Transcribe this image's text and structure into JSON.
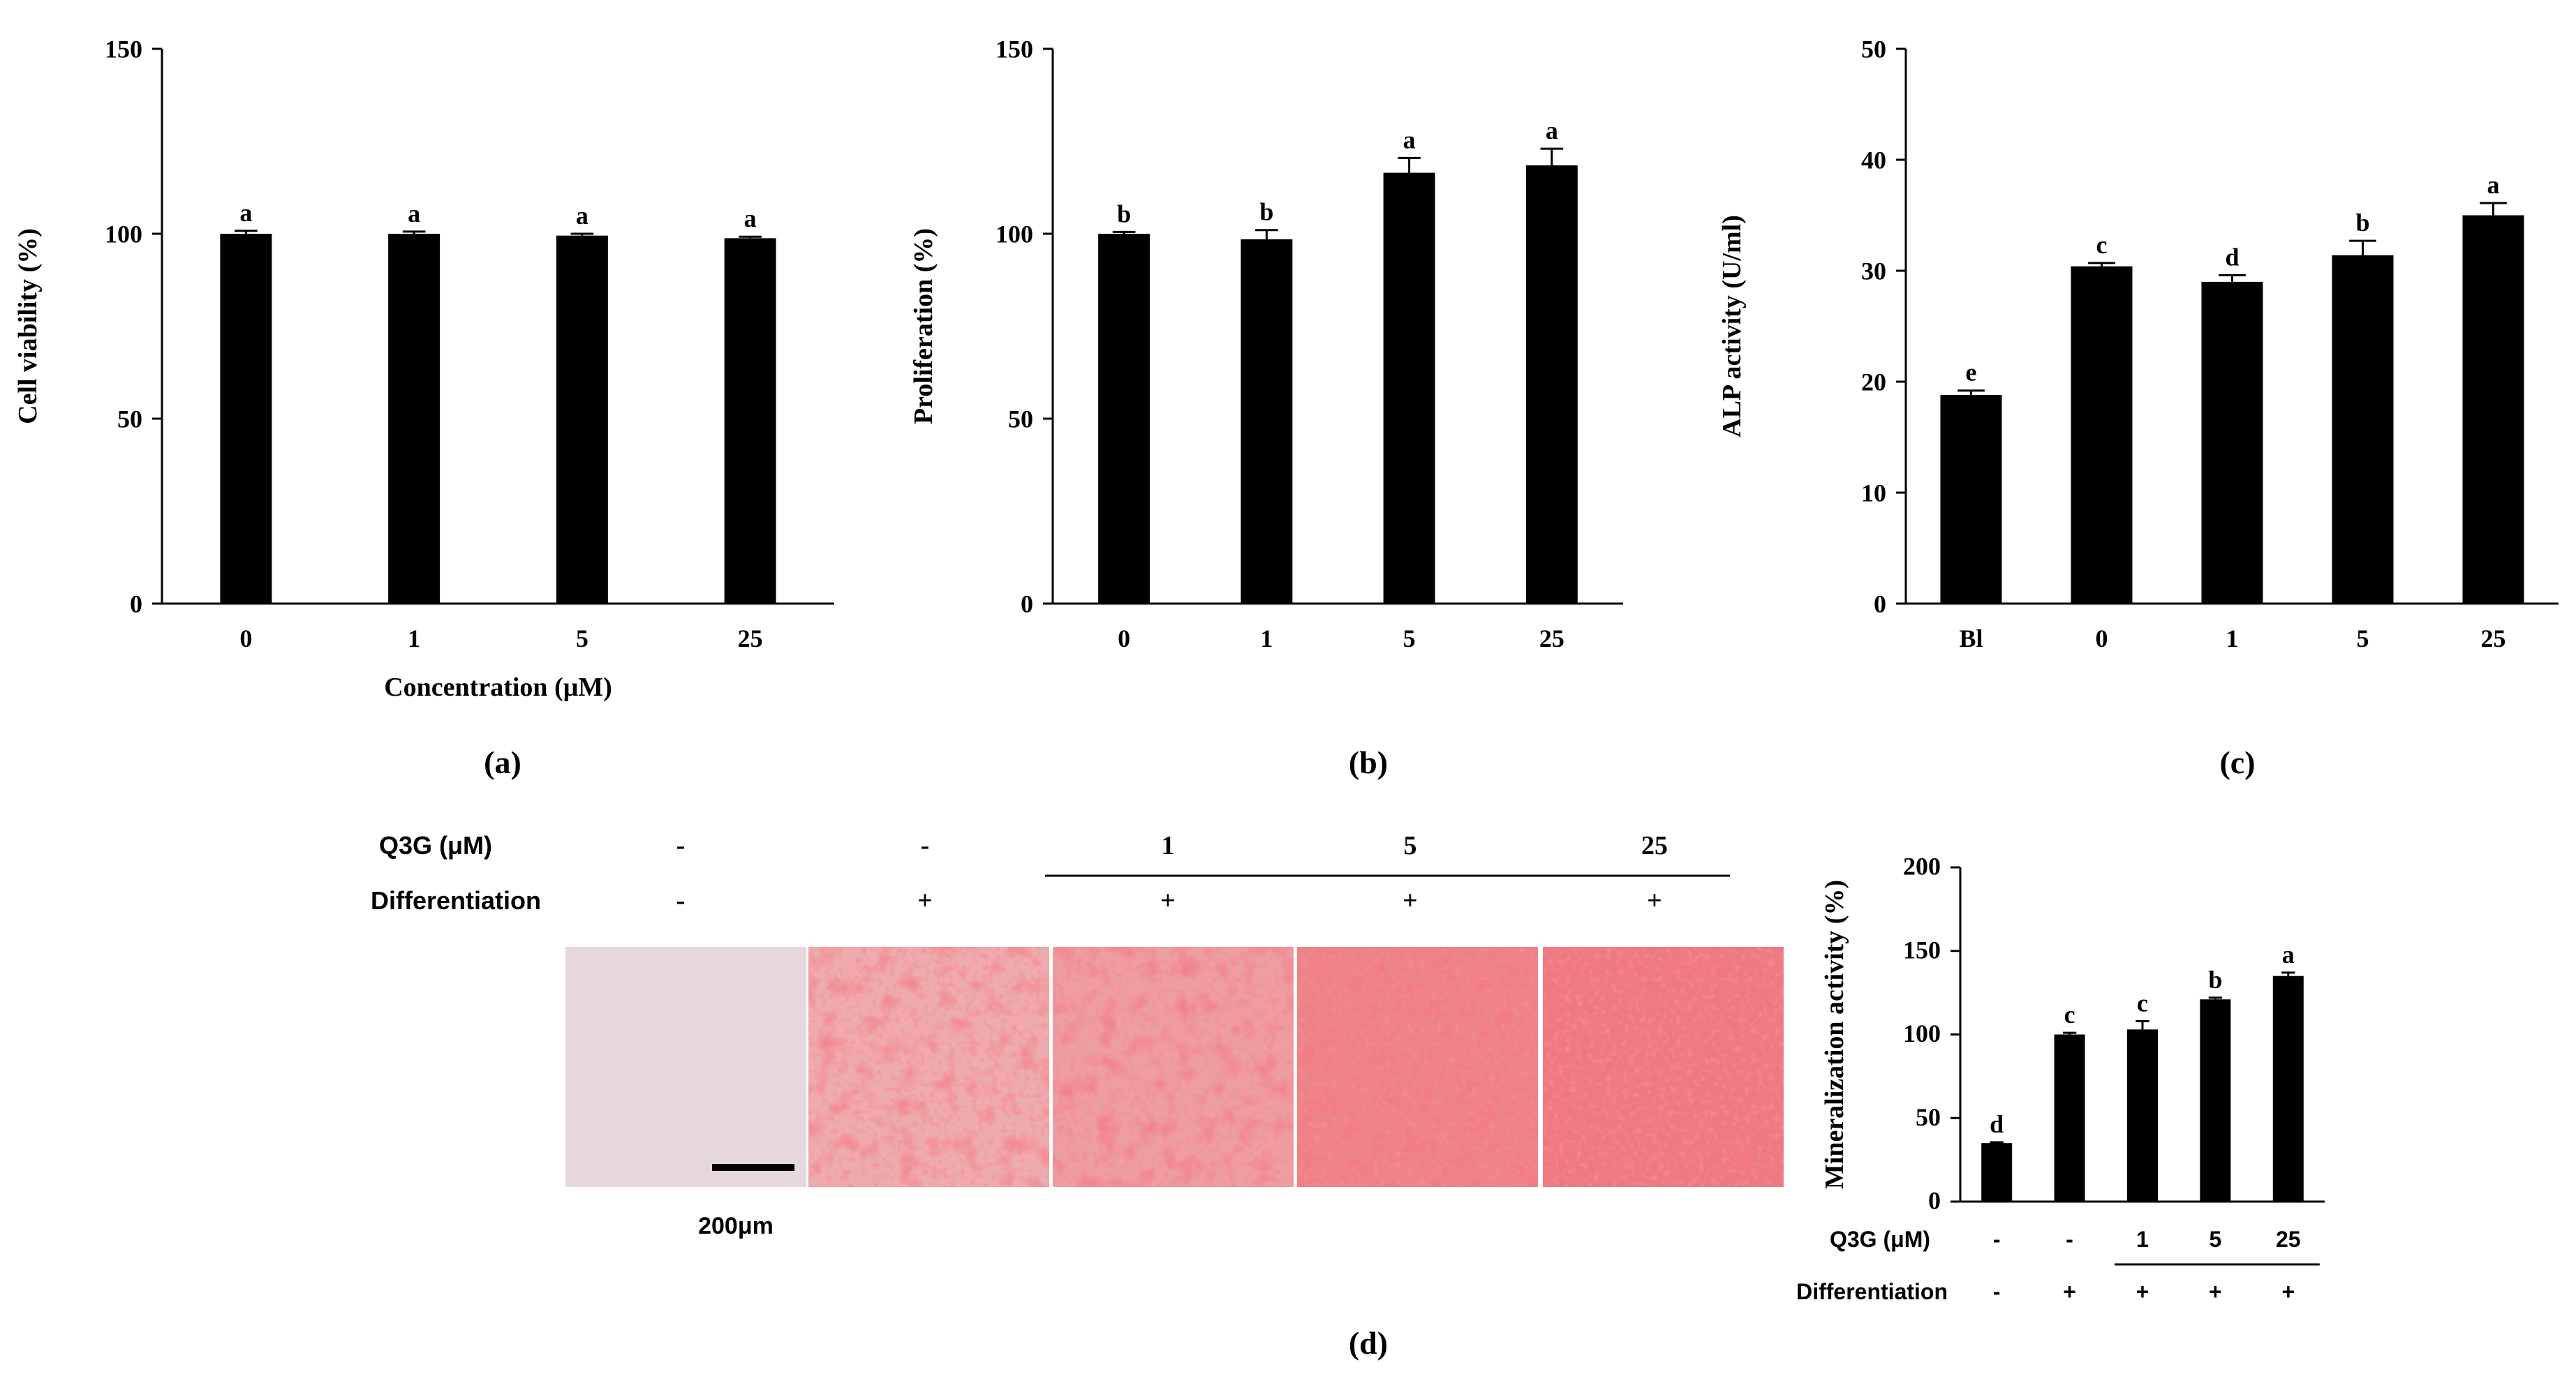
{
  "chart_data": [
    {
      "type": "bar",
      "panel": "(a)",
      "categories": [
        "0",
        "1",
        "5",
        "25"
      ],
      "values": [
        100,
        100,
        99.5,
        98.8
      ],
      "errors": [
        0.8,
        0.6,
        0.5,
        0.4
      ],
      "labels": [
        "a",
        "a",
        "a",
        "a"
      ],
      "xlabel": "Concentration (μM)",
      "ylabel": "Cell viability (%)",
      "ylim": [
        0,
        150
      ],
      "yticks": [
        "0",
        "50",
        "100",
        "150"
      ]
    },
    {
      "type": "bar",
      "panel": "(b)",
      "categories": [
        "0",
        "1",
        "5",
        "25"
      ],
      "values": [
        100,
        98.5,
        116.5,
        118.5
      ],
      "errors": [
        0.5,
        2.5,
        4.0,
        4.5
      ],
      "labels": [
        "b",
        "b",
        "a",
        "a"
      ],
      "xlabel": "",
      "ylabel": "Proliferation (%)",
      "ylim": [
        0,
        150
      ],
      "yticks": [
        "0",
        "50",
        "100",
        "150"
      ]
    },
    {
      "type": "bar",
      "panel": "(c)",
      "categories": [
        "Bl",
        "0",
        "1",
        "5",
        "25"
      ],
      "values": [
        18.8,
        30.4,
        29.0,
        31.4,
        35.0
      ],
      "errors": [
        0.4,
        0.3,
        0.6,
        1.3,
        1.1
      ],
      "labels": [
        "e",
        "c",
        "d",
        "b",
        "a"
      ],
      "xlabel": "",
      "ylabel": "ALP activity (U/ml)",
      "ylim": [
        0,
        50
      ],
      "yticks": [
        "0",
        "10",
        "20",
        "30",
        "40",
        "50"
      ]
    },
    {
      "type": "bar",
      "panel": "(d)",
      "categories": [
        "-",
        "-",
        "1",
        "5",
        "25"
      ],
      "values": [
        35,
        100,
        103,
        121,
        135
      ],
      "errors": [
        0.5,
        1,
        5,
        1,
        2
      ],
      "labels": [
        "d",
        "c",
        "c",
        "b",
        "a"
      ],
      "xlabel": "",
      "ylabel": "Mineralization activity (%)",
      "ylim": [
        0,
        200
      ],
      "yticks": [
        "0",
        "50",
        "100",
        "150",
        "200"
      ],
      "q3g_label": "Q3G (μM)",
      "diff_label": "Differentiation",
      "diff_values": [
        "-",
        "+",
        "+",
        "+",
        "+"
      ]
    }
  ],
  "stain_panel": {
    "q3g_label": "Q3G (μM)",
    "diff_label": "Differentiation",
    "q3g_values": [
      "-",
      "-",
      "1",
      "5",
      "25"
    ],
    "diff_values": [
      "-",
      "+",
      "+",
      "+",
      "+"
    ],
    "scale_bar_label": "200μm",
    "intensity": [
      0.0,
      0.45,
      0.6,
      0.9,
      1.0
    ]
  },
  "panel_labels": [
    "(a)",
    "(b)",
    "(c)",
    "(d)"
  ],
  "colors": {
    "bar": "#000000",
    "stain": "#e8303c",
    "background_well": "#eadde0"
  }
}
